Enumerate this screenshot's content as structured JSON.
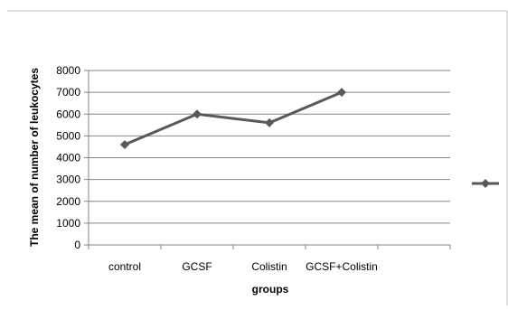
{
  "chart_data": {
    "type": "line",
    "title": "",
    "xlabel": "groups",
    "ylabel": "The mean of number of leukocytes",
    "categories": [
      "control",
      "GCSF",
      "Colistin",
      "GCSF+Colistin"
    ],
    "series": [
      {
        "values": [
          4600,
          6000,
          5600,
          7000
        ]
      }
    ],
    "ylim": [
      0,
      8000
    ],
    "yticks": [
      "0",
      "1000",
      "2000",
      "3000",
      "4000",
      "5000",
      "6000",
      "7000",
      "8000"
    ],
    "grid": true,
    "legend": "right",
    "marker": "diamond",
    "colors": {
      "series": "#595959",
      "grid": "#868686",
      "axis": "#868686",
      "border": "#bfbfbf"
    }
  }
}
